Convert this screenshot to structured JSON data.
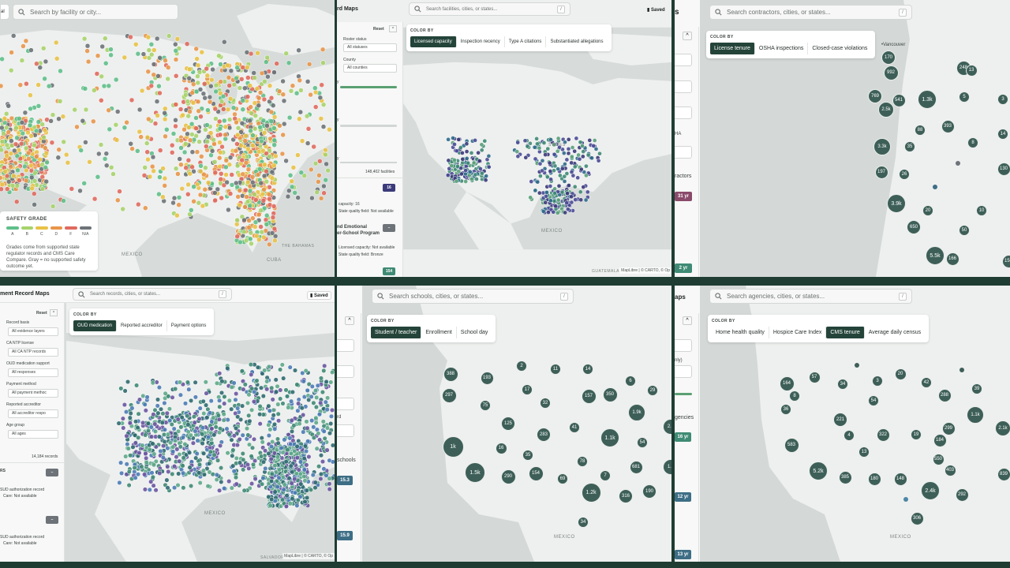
{
  "p1": {
    "search_button": "al",
    "search_placeholder": "Search by facility or city...",
    "legend_title": "SAFETY GRADE",
    "grades": [
      "A",
      "B",
      "C",
      "D",
      "F",
      "N/A"
    ],
    "grade_colors": [
      "#5fbf8a",
      "#a7d36b",
      "#e8c246",
      "#e8964a",
      "#e06a5e",
      "#6d7378"
    ],
    "legend_note": "Grades come from supported state regulator records and CMS Care Compare. Gray = no supported safety outcome yet.",
    "labels": {
      "mexico": "MEXICO",
      "cuba": "CUBA",
      "bahamas": "THE BAHAMAS"
    }
  },
  "p2": {
    "title": "rd Maps",
    "search_placeholder": "Search facilities, cities, or states...",
    "kbd": "/",
    "saved": "Saved",
    "color_by_label": "COLOR BY",
    "color_by": [
      "Licensed capacity",
      "Inspection recency",
      "Type A citations",
      "Substantiated allegations"
    ],
    "active_color": 0,
    "reset": "Reset",
    "roster_status_label": "Roster status",
    "roster_status_value": "All statuses",
    "county_label": "County",
    "county_value": "All counties",
    "side_frag1": "y",
    "side_frag2": "y",
    "side_frag3": "y",
    "facility_count": "148,402 facilities",
    "card1_badge": "16",
    "card1_capacity": "capacity: 16",
    "card1_quality": "State quality field: Not available",
    "card2_title": "nd Emotional",
    "card2_title2": "er-School Program",
    "card2_capacity": "Licensed capacity: Not available",
    "card2_quality": "State quality field: Bronze",
    "card3_badge": "154",
    "labels": {
      "mexico": "MEXICO",
      "guatemala": "GUATEMALA",
      "states": "STATES"
    },
    "attribution": "MapLibre | © CARTO, © Op"
  },
  "p3": {
    "search_placeholder": "Search contractors, cities, or states...",
    "kbd": "/",
    "title_frag": "s",
    "color_by_label": "COLOR BY",
    "color_by": [
      "License tenure",
      "OSHA inspections",
      "Closed-case violations"
    ],
    "active_color": 0,
    "side_frag1": "HA",
    "side_frag2": "ractors",
    "badge1": "31 yr",
    "badge2": "2 yr",
    "city": "Vancouver",
    "bubbles": [
      "170",
      "992",
      "248",
      "13",
      "769",
      "541",
      "1.3k",
      "5",
      "3",
      "2.5k",
      "88",
      "393",
      "14",
      "3.3k",
      "35",
      "8",
      "197",
      "26",
      "130",
      "3.9k",
      "20",
      "10",
      "650",
      "50",
      "5.5k",
      "166",
      "150"
    ]
  },
  "p4": {
    "title": "ment Record Maps",
    "search_placeholder": "Search records, cities, or states...",
    "kbd": "/",
    "saved": "Saved",
    "color_by_label": "COLOR BY",
    "color_by": [
      "OUD medication",
      "Reported accreditor",
      "Payment options"
    ],
    "active_color": 0,
    "reset": "Reset",
    "filters": [
      {
        "label": "Record basis",
        "value": "All evidence layers"
      },
      {
        "label": "CA NTP license",
        "value": "All CA NTP records"
      },
      {
        "label": "OUD medication support",
        "value": "All responses"
      },
      {
        "label": "Payment method",
        "value": "All payment methoc"
      },
      {
        "label": "Reported accreditor",
        "value": "All accreditor respo"
      },
      {
        "label": "Age group",
        "value": "All ages"
      }
    ],
    "record_count": "14,184 records",
    "side_rs": "RS",
    "card1_line1": "SUD authorization record",
    "card1_line2": "Care: Not available",
    "card2_line1": "SUD authorization record",
    "card2_line2": "Care: Not available",
    "labels": {
      "mexico": "MEXICO",
      "salvador": "SALVADOR"
    },
    "attribution": "MapLibre | © CARTO, © Op"
  },
  "p5": {
    "search_placeholder": "Search schools, cities, or states...",
    "kbd": "/",
    "color_by_label": "COLOR BY",
    "color_by": [
      "Student / teacher",
      "Enrollment",
      "School day"
    ],
    "active_color": 0,
    "side_frag1": "rd",
    "side_frag2": "schools",
    "badge1": "15.3",
    "badge2": "15.9",
    "labels": {
      "mexico": "MEXICO"
    },
    "bubbles": [
      "388",
      "2",
      "11",
      "14",
      "297",
      "193",
      "17",
      "6",
      "29",
      "75",
      "32",
      "157",
      "350",
      "1.9k",
      "125",
      "41",
      "283",
      "2.8",
      "1k",
      "16",
      "1.1k",
      "54",
      "35",
      "78",
      "1.5k",
      "290",
      "154",
      "69",
      "7",
      "681",
      "1.7",
      "1.2k",
      "316",
      "190",
      "34"
    ]
  },
  "p6": {
    "title": "aps",
    "search_placeholder": "Search agencies, cities, or states...",
    "kbd": "/",
    "color_by_label": "COLOR BY",
    "color_by": [
      "Home health quality",
      "Hospice Care Index",
      "CMS tenure",
      "Average daily census"
    ],
    "active_color": 2,
    "side_frag1": "nly)",
    "side_frag2": "gencies",
    "badge1": "16 yr",
    "badge2": "12 yr",
    "badge3": "13 yr",
    "labels": {
      "mexico": "MEXICO"
    },
    "bubbles": [
      "164",
      "57",
      "34",
      "3",
      "20",
      "42",
      "39",
      "8",
      "54",
      "288",
      "36",
      "221",
      "1.1k",
      "2.1k",
      "299",
      "4",
      "322",
      "19",
      "583",
      "184",
      "13",
      "550",
      "5.2k",
      "385",
      "180",
      "148",
      "403",
      "839",
      "2.4k",
      "292",
      "306"
    ]
  },
  "colors": {
    "frame": "#1f3d33",
    "cluster": "#3d5f57",
    "land": "#eef0ef",
    "water": "#d4d9d7",
    "accent": "#24443a",
    "capacity_badge": "#3b3a7a",
    "tenure_badge": "#8a4a6a",
    "teal_badge": "#3f8a74",
    "slate_badge": "#3d6e86"
  }
}
